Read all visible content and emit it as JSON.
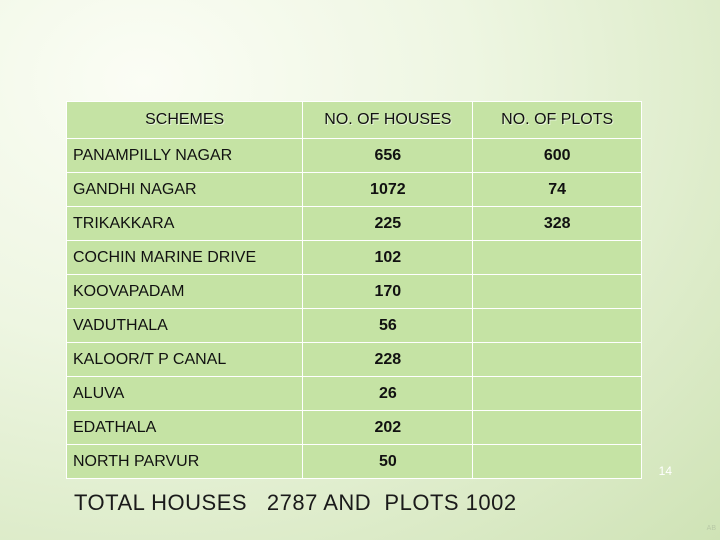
{
  "table": {
    "headers": [
      "SCHEMES",
      "NO. OF HOUSES",
      "NO. OF PLOTS"
    ],
    "rows": [
      {
        "scheme": "PANAMPILLY NAGAR",
        "houses": "656",
        "plots": "600"
      },
      {
        "scheme": "GANDHI NAGAR",
        "houses": "1072",
        "plots": "74"
      },
      {
        "scheme": "TRIKAKKARA",
        "houses": "225",
        "plots": "328"
      },
      {
        "scheme": "COCHIN MARINE DRIVE",
        "houses": "102",
        "plots": ""
      },
      {
        "scheme": "KOOVAPADAM",
        "houses": "170",
        "plots": ""
      },
      {
        "scheme": "VADUTHALA",
        "houses": "56",
        "plots": ""
      },
      {
        "scheme": "KALOOR/T P CANAL",
        "houses": "228",
        "plots": ""
      },
      {
        "scheme": "ALUVA",
        "houses": "26",
        "plots": ""
      },
      {
        "scheme": "EDATHALA",
        "houses": "202",
        "plots": ""
      },
      {
        "scheme": "NORTH PARVUR",
        "houses": "50",
        "plots": ""
      }
    ]
  },
  "footer": {
    "total_text": "TOTAL HOUSES   2787 AND  PLOTS 1002",
    "page_number": "14",
    "corner_mark": "AB"
  },
  "colors": {
    "cell_fill": "#c5e3a4",
    "cell_border": "#ffffff",
    "background": "#e6f1d6"
  }
}
